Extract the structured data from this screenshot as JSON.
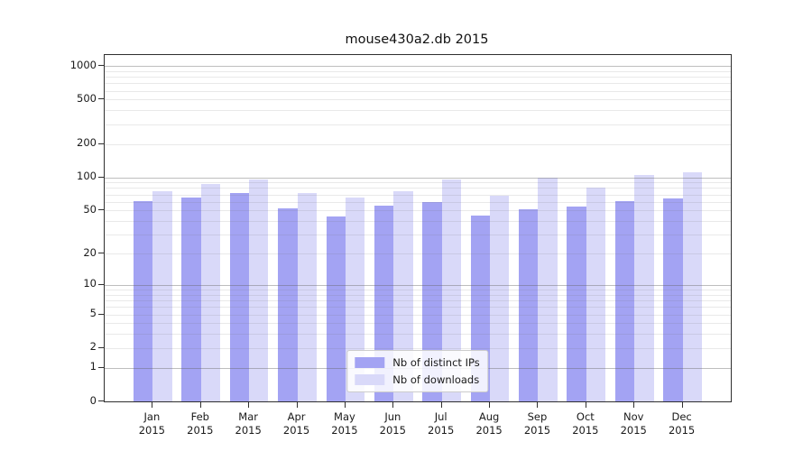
{
  "window": {
    "background": "#ffffff"
  },
  "chart_data": {
    "type": "bar",
    "title": "mouse430a2.db 2015",
    "categories": [
      "Jan",
      "Feb",
      "Mar",
      "Apr",
      "May",
      "Jun",
      "Jul",
      "Aug",
      "Sep",
      "Oct",
      "Nov",
      "Dec"
    ],
    "category_year": "2015",
    "series": [
      {
        "name": "Nb of distinct IPs",
        "color": "#a3a3f3",
        "values": [
          61,
          66,
          72,
          52,
          44,
          55,
          60,
          45,
          51,
          54,
          61,
          64
        ]
      },
      {
        "name": "Nb of downloads",
        "color": "#d9d9f9",
        "values": [
          75,
          87,
          95,
          72,
          66,
          75,
          95,
          68,
          99,
          81,
          106,
          112
        ]
      }
    ],
    "yscale": "log(1+v)",
    "yticks": [
      0,
      1,
      2,
      5,
      10,
      20,
      50,
      100,
      200,
      500,
      1000
    ],
    "ylim": [
      0,
      1254
    ],
    "xlabel": "",
    "ylabel": "",
    "grid": true,
    "legend_position": "lower center",
    "colors": {
      "axis": "#2f2f2f",
      "grid_major": "#aaaaaa",
      "grid_minor": "#e6e6e6",
      "text": "#1a1a1a"
    }
  }
}
